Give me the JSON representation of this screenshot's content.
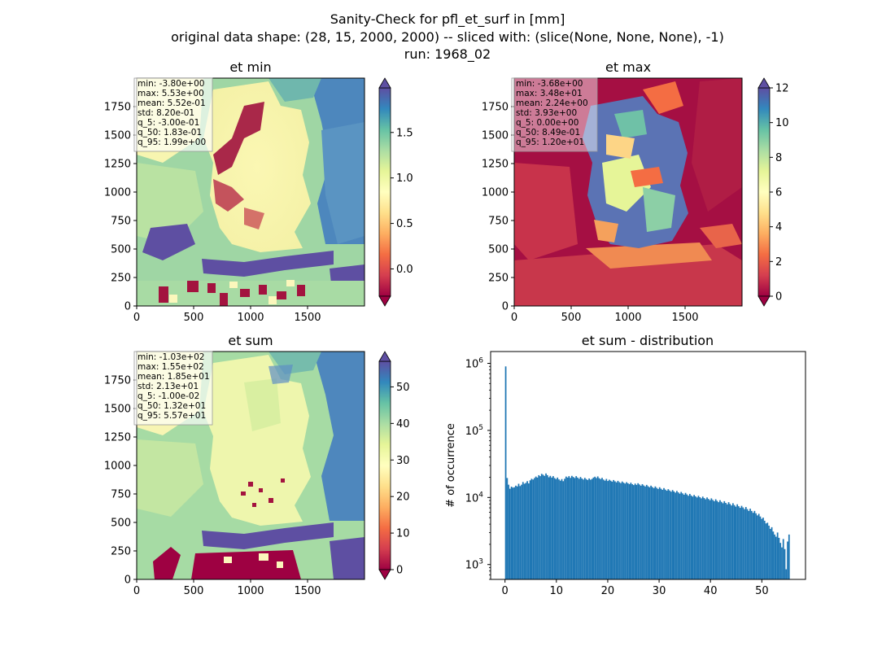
{
  "figure": {
    "title_lines": [
      "Sanity-Check for pfl_et_surf in [mm]",
      "original data shape: (28, 15, 2000, 2000) -- sliced with: (slice(None, None, None), -1)",
      "run: 1968_02"
    ]
  },
  "chart_data": [
    {
      "type": "heatmap",
      "title": "et min",
      "xlim": [
        0,
        2000
      ],
      "ylim": [
        0,
        2000
      ],
      "xticks": [
        "0",
        "500",
        "1000",
        "1500"
      ],
      "yticks": [
        "0",
        "250",
        "500",
        "750",
        "1000",
        "1250",
        "1500",
        "1750"
      ],
      "colormap": "Spectral",
      "colorbar": {
        "range": [
          -0.3,
          1.99
        ],
        "ticks": [
          "0.0",
          "0.5",
          "1.0",
          "1.5"
        ],
        "extend": "both"
      },
      "stats": [
        "min: -3.80e+00",
        "max: 5.53e+00",
        "mean: 5.52e-01",
        "std: 8.20e-01",
        "q_5: -3.00e-01",
        "q_50: 1.83e-01",
        "q_95: 1.99e+00"
      ]
    },
    {
      "type": "heatmap",
      "title": "et max",
      "xlim": [
        0,
        2000
      ],
      "ylim": [
        0,
        2000
      ],
      "xticks": [
        "0",
        "500",
        "1000",
        "1500"
      ],
      "yticks": [
        "0",
        "250",
        "500",
        "750",
        "1000",
        "1250",
        "1500",
        "1750"
      ],
      "colormap": "Spectral",
      "colorbar": {
        "range": [
          0,
          12
        ],
        "ticks": [
          "0",
          "2",
          "4",
          "6",
          "8",
          "10",
          "12"
        ],
        "extend": "both"
      },
      "stats": [
        "min: -3.68e+00",
        "max: 3.48e+01",
        "mean: 2.24e+00",
        "std: 3.93e+00",
        "q_5: 0.00e+00",
        "q_50: 8.49e-01",
        "q_95: 1.20e+01"
      ]
    },
    {
      "type": "heatmap",
      "title": "et sum",
      "xlim": [
        0,
        2000
      ],
      "ylim": [
        0,
        2000
      ],
      "xticks": [
        "0",
        "500",
        "1000",
        "1500"
      ],
      "yticks": [
        "0",
        "250",
        "500",
        "750",
        "1000",
        "1250",
        "1500",
        "1750"
      ],
      "colormap": "Spectral",
      "colorbar": {
        "range": [
          0,
          57
        ],
        "ticks": [
          "0",
          "10",
          "20",
          "30",
          "40",
          "50"
        ],
        "extend": "both"
      },
      "stats": [
        "min: -1.03e+02",
        "max: 1.55e+02",
        "mean: 1.85e+01",
        "std: 2.13e+01",
        "q_5: -1.00e-02",
        "q_50: 1.32e+01",
        "q_95: 5.57e+01"
      ]
    },
    {
      "type": "bar",
      "title": "et sum - distribution",
      "xlabel": "",
      "ylabel": "# of occurrence",
      "yscale": "log",
      "xlim": [
        -2.8,
        58.5
      ],
      "ylim": [
        600,
        1500000
      ],
      "xticks": [
        0,
        10,
        20,
        30,
        40,
        50
      ],
      "yticks": [
        {
          "value": 1000,
          "base": "10",
          "exp": "3"
        },
        {
          "value": 10000,
          "base": "10",
          "exp": "4"
        },
        {
          "value": 100000,
          "base": "10",
          "exp": "5"
        },
        {
          "value": 1000000,
          "base": "10",
          "exp": "6"
        }
      ],
      "bar_color": "#1f77b4",
      "bin_start": 0,
      "bin_width": 0.28,
      "counts": [
        900000,
        19500,
        15500,
        13500,
        14500,
        14000,
        14200,
        15000,
        14600,
        16000,
        14800,
        15500,
        17000,
        16000,
        16500,
        17500,
        16200,
        18000,
        19000,
        18500,
        19500,
        20500,
        19800,
        21500,
        20800,
        22500,
        21800,
        21000,
        22800,
        21500,
        20000,
        21000,
        19800,
        20800,
        19500,
        18800,
        19800,
        18600,
        17800,
        18800,
        17500,
        19000,
        20500,
        19800,
        20800,
        19600,
        21000,
        20200,
        19500,
        20800,
        19800,
        19000,
        20200,
        19200,
        18500,
        19600,
        18800,
        18200,
        19200,
        18400,
        18900,
        19800,
        20400,
        19500,
        20600,
        19400,
        18800,
        19600,
        18500,
        17800,
        18900,
        17600,
        18400,
        17800,
        17200,
        18200,
        17400,
        16800,
        17700,
        16900,
        16400,
        17300,
        16600,
        16100,
        16900,
        16300,
        15800,
        16600,
        15800,
        15300,
        16100,
        15400,
        16300,
        15600,
        15000,
        15800,
        15100,
        14600,
        15400,
        14700,
        14200,
        15000,
        14300,
        13800,
        14600,
        13900,
        13400,
        14200,
        13500,
        13000,
        13800,
        13100,
        12600,
        13300,
        12700,
        12200,
        12900,
        12300,
        11800,
        12500,
        11900,
        11400,
        12100,
        11500,
        11000,
        11700,
        11100,
        10600,
        11300,
        10700,
        10300,
        10900,
        10400,
        10000,
        10600,
        10100,
        9700,
        10300,
        9800,
        9400,
        10000,
        9500,
        9100,
        9700,
        9200,
        8800,
        9400,
        8900,
        8500,
        9100,
        8600,
        8200,
        8800,
        8300,
        7900,
        8500,
        8000,
        7600,
        8200,
        7700,
        7300,
        7900,
        7400,
        7000,
        7500,
        7100,
        6700,
        7200,
        6700,
        6300,
        6800,
        6300,
        5900,
        6300,
        5800,
        5400,
        5700,
        5200,
        4800,
        5000,
        4500,
        4100,
        4200,
        3800,
        3400,
        3600,
        3100,
        2800,
        2600,
        3000,
        2500,
        2100,
        1800,
        2400,
        1700,
        850,
        2200,
        2800
      ]
    }
  ]
}
